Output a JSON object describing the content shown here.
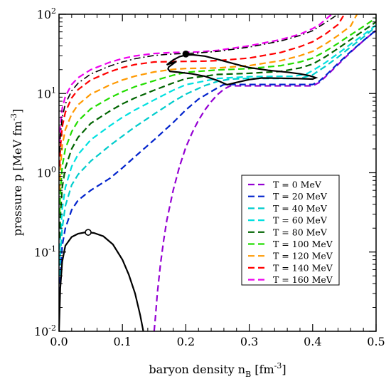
{
  "chart_data": {
    "type": "line",
    "xlabel": {
      "main": "baryon density  n",
      "sub": "B",
      "unit_pre": "  [fm",
      "unit_exp": "-3",
      "unit_post": "]"
    },
    "ylabel": {
      "main": "pressure  p  [MeV fm",
      "exp": "-3",
      "post": "]"
    },
    "xlim": [
      0.0,
      0.5
    ],
    "ylim": [
      0.01,
      100
    ],
    "yscale": "log",
    "x_ticks": [
      "0.0",
      "0.1",
      "0.2",
      "0.3",
      "0.4",
      "0.5"
    ],
    "y_ticks": [
      {
        "base": "10",
        "exp": "-2"
      },
      {
        "base": "10",
        "exp": "-1"
      },
      {
        "base": "10",
        "exp": "0"
      },
      {
        "base": "10",
        "exp": "1"
      },
      {
        "base": "10",
        "exp": "2"
      }
    ],
    "grid": false,
    "legend_position": "center-right",
    "series": [
      {
        "name": "T = 0 MeV",
        "color": "#9400d3",
        "x": [
          0.15,
          0.152,
          0.155,
          0.16,
          0.165,
          0.17,
          0.18,
          0.19,
          0.2,
          0.21,
          0.22,
          0.23,
          0.24,
          0.25,
          0.26,
          0.27,
          0.4,
          0.41,
          0.42,
          0.43,
          0.44,
          0.45,
          0.46,
          0.47,
          0.48,
          0.49,
          0.5
        ],
        "y": [
          0.01,
          0.015,
          0.03,
          0.07,
          0.14,
          0.25,
          0.6,
          1.2,
          2.1,
          3.2,
          4.6,
          6.2,
          7.9,
          9.7,
          11.3,
          12.5,
          12.5,
          13.7,
          16.2,
          19.4,
          23.2,
          27.8,
          33.2,
          39.3,
          46.2,
          54.0,
          62.0
        ]
      },
      {
        "name": "T = 20 MeV",
        "color": "#0022cc",
        "x": [
          0.001,
          0.002,
          0.005,
          0.01,
          0.02,
          0.03,
          0.05,
          0.08,
          0.1,
          0.12,
          0.15,
          0.18,
          0.2,
          0.22,
          0.25,
          0.26,
          0.4,
          0.41,
          0.42,
          0.44,
          0.46,
          0.48,
          0.5
        ],
        "y": [
          0.03,
          0.05,
          0.12,
          0.2,
          0.34,
          0.45,
          0.6,
          0.85,
          1.15,
          1.6,
          2.6,
          4.3,
          6.2,
          8.5,
          11.8,
          13.0,
          13.0,
          14.2,
          16.7,
          24.0,
          33.8,
          46.5,
          63.0
        ]
      },
      {
        "name": "T = 40 MeV",
        "color": "#00cccc",
        "x": [
          0.001,
          0.002,
          0.005,
          0.01,
          0.02,
          0.03,
          0.05,
          0.08,
          0.1,
          0.12,
          0.15,
          0.18,
          0.2,
          0.23,
          0.25,
          0.27,
          0.3,
          0.38,
          0.4,
          0.42,
          0.44,
          0.46,
          0.48,
          0.5
        ],
        "y": [
          0.05,
          0.09,
          0.2,
          0.38,
          0.7,
          0.95,
          1.4,
          2.2,
          2.9,
          3.8,
          5.5,
          7.9,
          9.8,
          12.6,
          14.2,
          15.2,
          15.5,
          15.5,
          17.2,
          22.0,
          28.8,
          38.6,
          51.5,
          70.0
        ]
      },
      {
        "name": "T = 60 MeV",
        "color": "#00e0e0",
        "x": [
          0.001,
          0.002,
          0.005,
          0.01,
          0.02,
          0.03,
          0.05,
          0.08,
          0.1,
          0.12,
          0.15,
          0.18,
          0.2,
          0.25,
          0.3,
          0.35,
          0.37,
          0.39,
          0.4,
          0.42,
          0.44,
          0.46,
          0.48,
          0.5
        ],
        "y": [
          0.08,
          0.15,
          0.35,
          0.65,
          1.2,
          1.7,
          2.6,
          3.9,
          5.0,
          6.2,
          8.3,
          11.0,
          12.9,
          15.5,
          16.3,
          16.5,
          16.5,
          17.6,
          19.5,
          24.5,
          32.0,
          42.0,
          55.0,
          73.0
        ]
      },
      {
        "name": "T = 80 MeV",
        "color": "#006400",
        "x": [
          0.001,
          0.002,
          0.005,
          0.01,
          0.02,
          0.03,
          0.05,
          0.08,
          0.1,
          0.12,
          0.15,
          0.18,
          0.2,
          0.25,
          0.3,
          0.35,
          0.38,
          0.4,
          0.42,
          0.44,
          0.46,
          0.48,
          0.5
        ],
        "y": [
          0.15,
          0.28,
          0.65,
          1.15,
          2.0,
          2.8,
          4.2,
          6.0,
          7.4,
          8.8,
          11.0,
          13.6,
          15.4,
          17.4,
          18.0,
          19.0,
          21.0,
          23.5,
          29.0,
          37.0,
          48.0,
          62.0,
          80.0
        ]
      },
      {
        "name": "T = 100 MeV",
        "color": "#22dd00",
        "x": [
          0.001,
          0.002,
          0.005,
          0.01,
          0.02,
          0.03,
          0.05,
          0.08,
          0.1,
          0.12,
          0.15,
          0.18,
          0.2,
          0.25,
          0.3,
          0.35,
          0.38,
          0.4,
          0.42,
          0.44,
          0.46,
          0.48,
          0.5
        ],
        "y": [
          0.3,
          0.55,
          1.2,
          2.0,
          3.3,
          4.5,
          6.4,
          8.8,
          10.5,
          12.2,
          14.5,
          17.0,
          18.5,
          19.8,
          20.6,
          22.5,
          25.0,
          28.0,
          34.0,
          43.0,
          55.0,
          70.0,
          90.0
        ]
      },
      {
        "name": "T = 120 MeV",
        "color": "#ff9900",
        "x": [
          0.001,
          0.002,
          0.005,
          0.01,
          0.02,
          0.03,
          0.05,
          0.08,
          0.1,
          0.12,
          0.15,
          0.18,
          0.2,
          0.25,
          0.3,
          0.35,
          0.38,
          0.4,
          0.42,
          0.44,
          0.46,
          0.47
        ],
        "y": [
          0.6,
          1.1,
          2.2,
          3.5,
          5.5,
          7.2,
          9.8,
          12.8,
          14.8,
          16.6,
          18.7,
          20.2,
          20.7,
          21.0,
          22.5,
          26.0,
          30.0,
          34.0,
          42.0,
          54.0,
          71.0,
          100.0
        ]
      },
      {
        "name": "T = 140 MeV",
        "color": "#ff0000",
        "x": [
          0.001,
          0.002,
          0.005,
          0.01,
          0.02,
          0.03,
          0.05,
          0.08,
          0.1,
          0.12,
          0.15,
          0.18,
          0.2,
          0.23,
          0.25,
          0.3,
          0.35,
          0.38,
          0.4,
          0.42,
          0.44,
          0.45
        ],
        "y": [
          1.2,
          2.0,
          3.8,
          5.8,
          8.8,
          11.2,
          14.8,
          18.8,
          21.2,
          23.2,
          25.0,
          25.3,
          25.4,
          25.6,
          26.0,
          28.0,
          33.0,
          39.0,
          45.0,
          56.0,
          74.0,
          100.0
        ]
      },
      {
        "name": "T = 160 MeV",
        "color": "#ee00ee",
        "x": [
          0.001,
          0.002,
          0.005,
          0.01,
          0.02,
          0.03,
          0.05,
          0.08,
          0.1,
          0.12,
          0.15,
          0.18,
          0.2,
          0.22,
          0.25,
          0.3,
          0.35,
          0.38,
          0.4,
          0.41,
          0.43
        ],
        "y": [
          2.4,
          3.8,
          6.5,
          9.2,
          13.0,
          15.8,
          20.0,
          24.8,
          27.6,
          29.8,
          32.0,
          33.0,
          33.2,
          33.5,
          35.0,
          40.0,
          48.0,
          56.0,
          66.0,
          73.0,
          100.0
        ]
      }
    ],
    "black_dashdot": {
      "x": [
        0.001,
        0.002,
        0.005,
        0.01,
        0.02,
        0.03,
        0.05,
        0.08,
        0.1,
        0.12,
        0.15,
        0.18,
        0.2,
        0.22,
        0.25,
        0.3,
        0.35,
        0.38,
        0.4,
        0.42,
        0.44
      ],
      "y": [
        1.8,
        2.9,
        5.0,
        7.4,
        10.8,
        13.5,
        17.6,
        22.2,
        25.0,
        27.5,
        30.2,
        31.6,
        32.0,
        32.5,
        34.0,
        38.5,
        46.0,
        54.0,
        62.0,
        78.0,
        100.0
      ]
    },
    "coexistence_low": {
      "x": [
        0.0,
        0.002,
        0.005,
        0.01,
        0.02,
        0.03,
        0.04,
        0.046,
        0.055,
        0.07,
        0.085,
        0.1,
        0.11,
        0.12,
        0.128,
        0.133
      ],
      "y": [
        0.01,
        0.035,
        0.075,
        0.12,
        0.155,
        0.17,
        0.176,
        0.177,
        0.174,
        0.158,
        0.125,
        0.08,
        0.052,
        0.03,
        0.016,
        0.01
      ]
    },
    "coexistence_high": {
      "x": [
        0.17,
        0.18,
        0.19,
        0.2,
        0.21,
        0.23,
        0.25,
        0.28,
        0.3,
        0.33,
        0.36,
        0.38,
        0.395,
        0.405,
        0.4,
        0.38,
        0.35,
        0.32,
        0.3,
        0.28,
        0.265,
        0.25,
        0.23,
        0.21,
        0.19,
        0.175,
        0.172,
        0.173,
        0.185
      ],
      "y": [
        23.0,
        26.5,
        29.2,
        30.5,
        30.8,
        29.6,
        27.0,
        23.3,
        21.2,
        19.6,
        18.6,
        17.7,
        16.8,
        15.8,
        15.2,
        15.4,
        15.6,
        15.7,
        15.0,
        13.8,
        12.9,
        14.6,
        16.5,
        17.7,
        18.5,
        19.0,
        20.4,
        21.6,
        25.4
      ]
    },
    "critical_points": [
      {
        "x": 0.046,
        "y": 0.177,
        "filled": false
      },
      {
        "x": 0.2,
        "y": 31.5,
        "filled": true
      }
    ]
  }
}
